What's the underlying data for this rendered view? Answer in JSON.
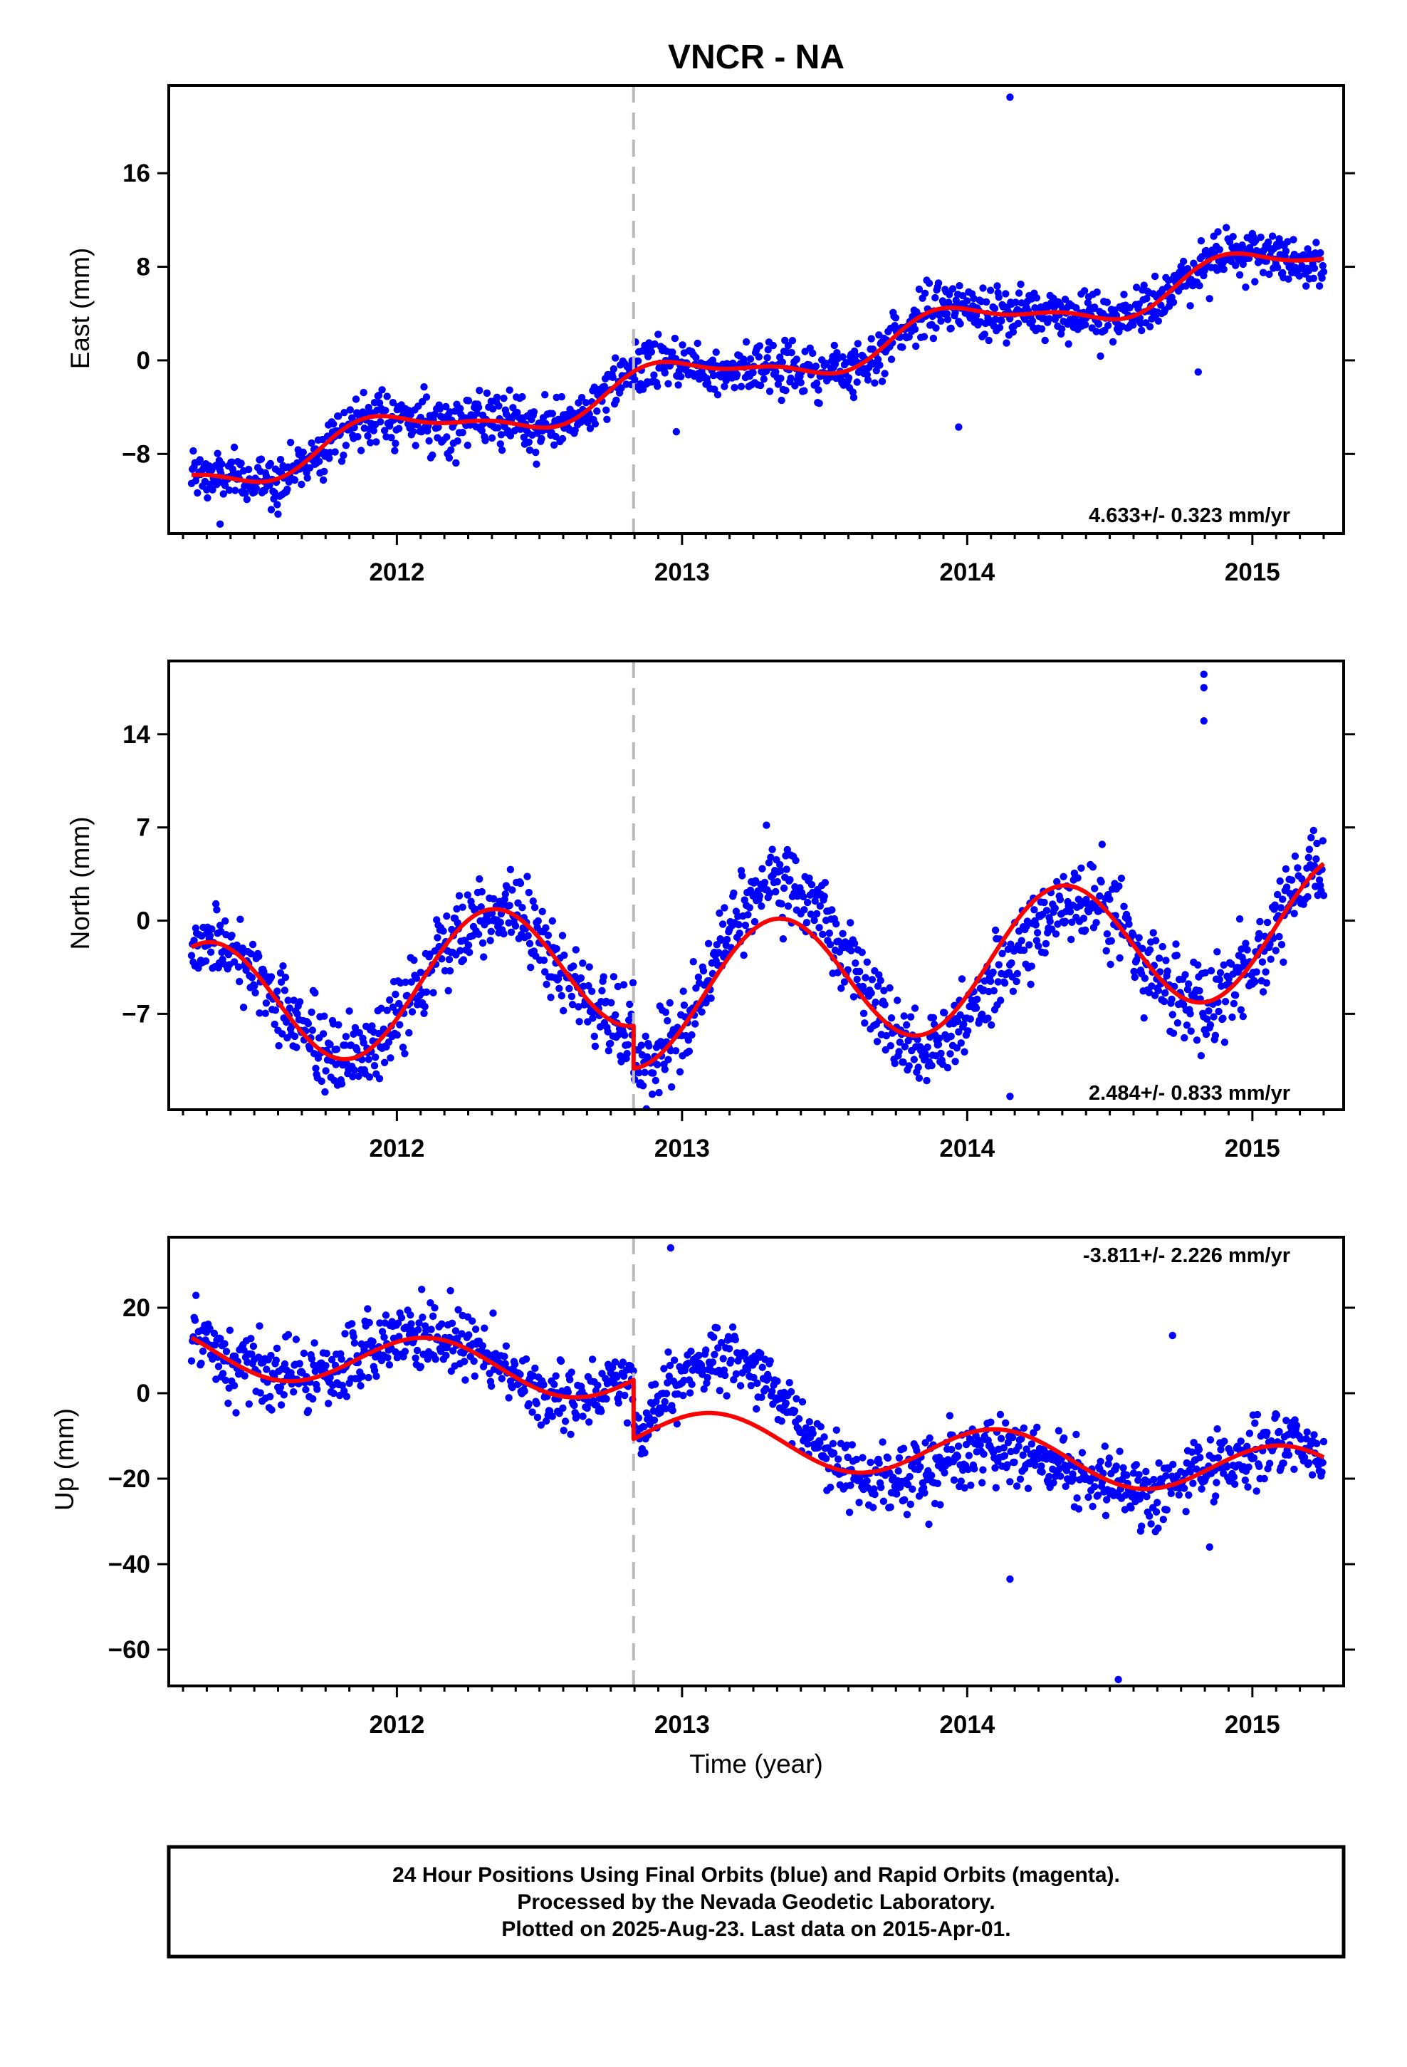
{
  "title": "VNCR - NA",
  "xlabel": "Time (year)",
  "footer": {
    "line1": "24 Hour Positions Using Final Orbits (blue) and Rapid Orbits (magenta).",
    "line2": "Processed by the Nevada Geodetic Laboratory.",
    "line3": "Plotted on 2025-Aug-23. Last data on 2015-Apr-01."
  },
  "colors": {
    "points": "#0000ff",
    "model": "#ff0000",
    "break_line": "#bbbbbb",
    "axes": "#000000"
  },
  "chart_data": [
    {
      "type": "scatter",
      "id": "east",
      "ylabel": "East (mm)",
      "rate_label": "4.633+/- 0.323 mm/yr",
      "xlim": [
        2011.2,
        2015.32
      ],
      "ylim": [
        -14.8,
        23.5
      ],
      "xticks": [
        2012,
        2013,
        2014,
        2015
      ],
      "yticks": [
        -8,
        0,
        8,
        16
      ],
      "break_at": 2012.83,
      "series": [
        {
          "role": "data",
          "rate": 4.633,
          "anchor": [
            2011.28,
            -9.8
          ],
          "offset": 0,
          "seasonal": [
            {
              "amp": 1.6,
              "period": 1.0,
              "phase": 0.55
            },
            {
              "amp": 0.6,
              "period": 0.5,
              "phase": 0.1
            }
          ],
          "noise": 1.1,
          "coverage": [
            2011.28,
            2015.25
          ],
          "n_points": 1350,
          "outliers": [
            [
              2014.15,
              22.5
            ],
            [
              2013.97,
              -5.7
            ],
            [
              2014.81,
              -1.0
            ],
            [
              2012.98,
              -6.1
            ],
            [
              2011.38,
              -14.0
            ]
          ]
        },
        {
          "role": "model",
          "rate": 4.633,
          "anchor": [
            2011.28,
            -9.8
          ],
          "offset": 0,
          "seasonal": [
            {
              "amp": 1.6,
              "period": 1.0,
              "phase": 0.55
            },
            {
              "amp": 0.6,
              "period": 0.5,
              "phase": 0.1
            }
          ],
          "coverage": [
            2011.28,
            2015.25
          ]
        }
      ]
    },
    {
      "type": "scatter",
      "id": "north",
      "ylabel": "North (mm)",
      "rate_label": "2.484+/- 0.833 mm/yr",
      "xlim": [
        2011.2,
        2015.32
      ],
      "ylim": [
        -14.2,
        19.5
      ],
      "xticks": [
        2012,
        2013,
        2014,
        2015
      ],
      "yticks": [
        -7,
        0,
        7,
        14
      ],
      "break_at": 2012.83,
      "series": [
        {
          "role": "data",
          "rate": 2.484,
          "anchor": [
            2011.28,
            -2.0
          ],
          "offset": 0,
          "break_step": -3.2,
          "seasonal": [
            {
              "amp": 5.0,
              "period": 1.0,
              "phase": 0.2
            }
          ],
          "noise": 1.5,
          "coverage": [
            2011.28,
            2015.25
          ],
          "n_points": 1350,
          "extra_anom": [
            [
              2013.0,
              2013.7,
              2.5
            ],
            [
              2013.7,
              2014.5,
              -2.0
            ]
          ],
          "outliers": [
            [
              2014.83,
              18.5
            ],
            [
              2014.83,
              17.5
            ],
            [
              2014.83,
              15.0
            ],
            [
              2014.15,
              -13.2
            ],
            [
              2012.96,
              -8.6
            ],
            [
              2014.96,
              -6.7
            ]
          ]
        },
        {
          "role": "model",
          "rate": 2.484,
          "anchor": [
            2011.28,
            -2.0
          ],
          "offset": 0,
          "break_step": -3.2,
          "seasonal": [
            {
              "amp": 5.0,
              "period": 1.0,
              "phase": 0.2
            }
          ],
          "coverage": [
            2011.28,
            2015.25
          ]
        }
      ]
    },
    {
      "type": "scatter",
      "id": "up",
      "ylabel": "Up (mm)",
      "rate_label": "-3.811+/- 2.226 mm/yr",
      "xlim": [
        2011.2,
        2015.32
      ],
      "ylim": [
        -68.5,
        36.5
      ],
      "xticks": [
        2012,
        2013,
        2014,
        2015
      ],
      "yticks": [
        -60,
        -40,
        -20,
        0,
        20
      ],
      "break_at": 2012.83,
      "series": [
        {
          "role": "data",
          "rate": -3.811,
          "anchor": [
            2011.28,
            13.0
          ],
          "offset": 0,
          "break_step": -13.8,
          "seasonal": [
            {
              "amp": 6.0,
              "period": 1.0,
              "phase": 0.42
            }
          ],
          "noise": 4.0,
          "coverage": [
            2011.28,
            2015.25
          ],
          "n_points": 1300,
          "extra_anom": [
            [
              2012.83,
              2013.55,
              13.0
            ],
            [
              2013.55,
              2014.5,
              -5.0
            ]
          ],
          "outliers": [
            [
              2012.96,
              34.0
            ],
            [
              2014.53,
              -67.0
            ],
            [
              2014.15,
              -43.5
            ],
            [
              2014.72,
              13.5
            ],
            [
              2014.85,
              -36.0
            ]
          ]
        },
        {
          "role": "model",
          "rate": -3.811,
          "anchor": [
            2011.28,
            13.0
          ],
          "offset": 0,
          "break_step": -13.8,
          "seasonal": [
            {
              "amp": 6.0,
              "period": 1.0,
              "phase": 0.42
            }
          ],
          "coverage": [
            2011.28,
            2015.25
          ]
        }
      ]
    }
  ]
}
